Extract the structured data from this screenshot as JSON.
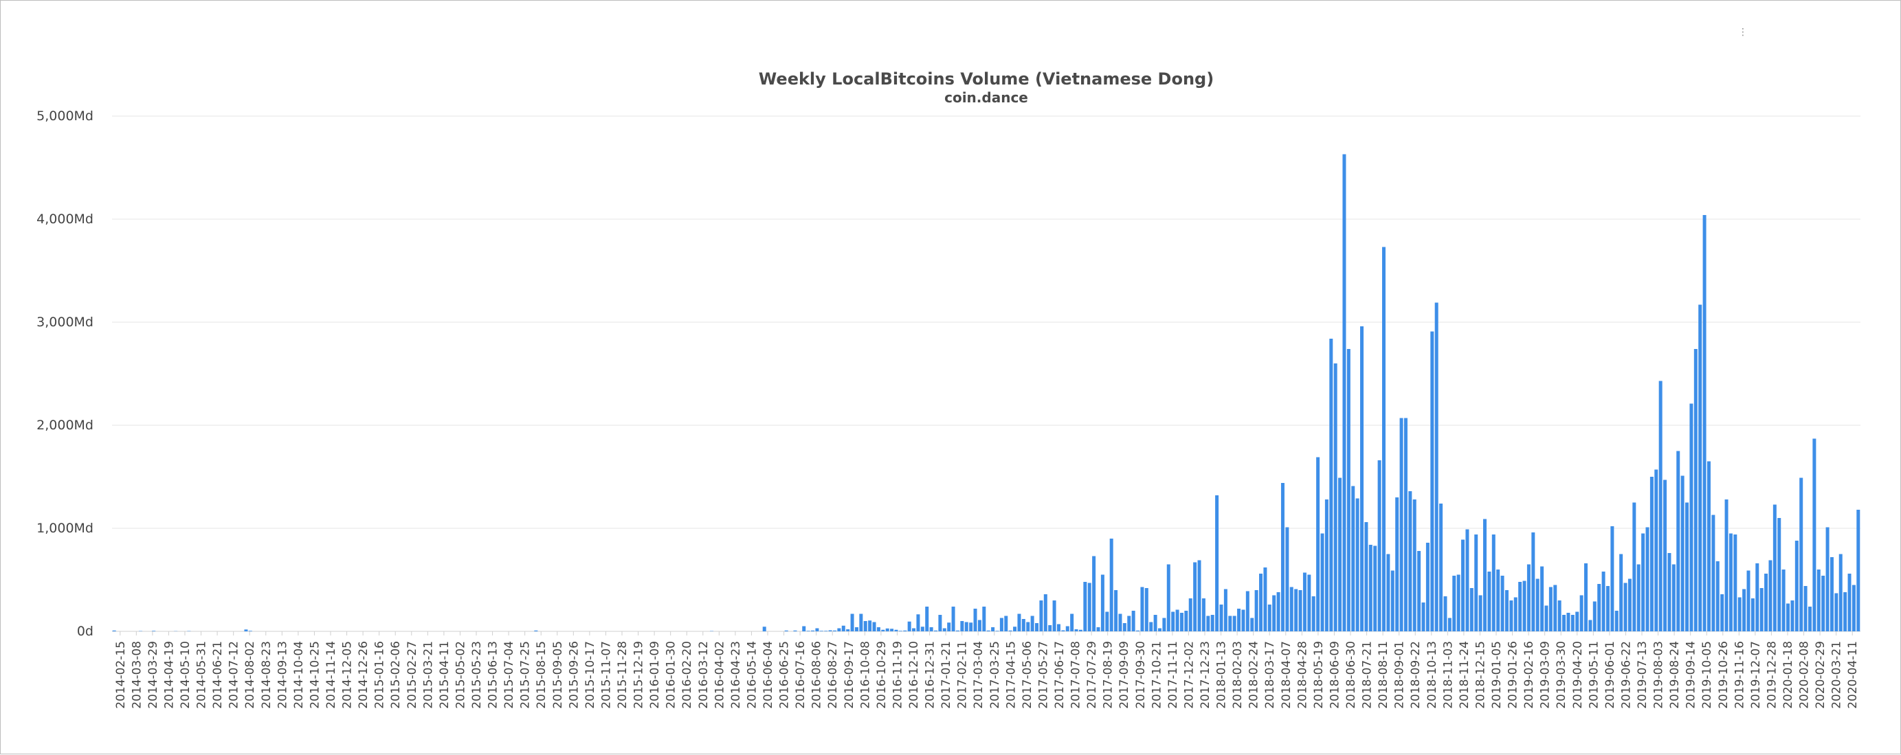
{
  "chart_data": {
    "type": "bar",
    "title": "Weekly LocalBitcoins Volume (Vietnamese Dong)",
    "subtitle": "coin.dance",
    "xlabel": "",
    "ylabel": "",
    "ylim": [
      0,
      5000
    ],
    "y_ticks": [
      0,
      1000,
      2000,
      3000,
      4000,
      5000
    ],
    "y_tick_labels": [
      "0d",
      "1,000Md",
      "2,000Md",
      "3,000Md",
      "4,000Md",
      "5,000Md"
    ],
    "grid": true,
    "color": "#3d8ee8",
    "x_labels": [
      "2014-02-15",
      "2014-03-08",
      "2014-03-29",
      "2014-04-19",
      "2014-05-10",
      "2014-05-31",
      "2014-06-21",
      "2014-07-12",
      "2014-08-02",
      "2014-08-23",
      "2014-09-13",
      "2014-10-04",
      "2014-10-25",
      "2014-11-14",
      "2014-12-05",
      "2014-12-26",
      "2015-01-16",
      "2015-02-06",
      "2015-02-27",
      "2015-03-21",
      "2015-04-11",
      "2015-05-02",
      "2015-05-23",
      "2015-06-13",
      "2015-07-04",
      "2015-07-25",
      "2015-08-15",
      "2015-09-05",
      "2015-09-26",
      "2015-10-17",
      "2015-11-07",
      "2015-11-28",
      "2015-12-19",
      "2016-01-09",
      "2016-01-30",
      "2016-02-20",
      "2016-03-12",
      "2016-04-02",
      "2016-04-23",
      "2016-05-14",
      "2016-06-04",
      "2016-06-25",
      "2016-07-16",
      "2016-08-06",
      "2016-08-27",
      "2016-09-17",
      "2016-10-08",
      "2016-10-29",
      "2016-11-19",
      "2016-12-10",
      "2016-12-31",
      "2017-01-21",
      "2017-02-11",
      "2017-03-04",
      "2017-03-25",
      "2017-04-15",
      "2017-05-06",
      "2017-05-27",
      "2017-06-17",
      "2017-07-08",
      "2017-07-29",
      "2017-08-19",
      "2017-09-09",
      "2017-09-30",
      "2017-10-21",
      "2017-11-11",
      "2017-12-02",
      "2017-12-23",
      "2018-01-13",
      "2018-02-03",
      "2018-02-24",
      "2018-03-17",
      "2018-04-07",
      "2018-04-28",
      "2018-05-19",
      "2018-06-09",
      "2018-06-30",
      "2018-07-21",
      "2018-08-11",
      "2018-09-01",
      "2018-09-22",
      "2018-10-13",
      "2018-11-03",
      "2018-11-24",
      "2018-12-15",
      "2019-01-05",
      "2019-01-26",
      "2019-02-16",
      "2019-03-09",
      "2019-03-30",
      "2019-04-20",
      "2019-05-11",
      "2019-06-01",
      "2019-06-22",
      "2019-07-13",
      "2019-08-03",
      "2019-08-24",
      "2019-09-14",
      "2019-10-05",
      "2019-10-26",
      "2019-11-16",
      "2019-12-07",
      "2019-12-28",
      "2020-01-18",
      "2020-02-08",
      "2020-02-29",
      "2020-03-21",
      "2020-04-11"
    ],
    "values": [
      8,
      0,
      0,
      0,
      0,
      0,
      3,
      0,
      0,
      5,
      0,
      0,
      0,
      0,
      2,
      0,
      0,
      3,
      0,
      0,
      0,
      0,
      0,
      0,
      0,
      0,
      0,
      0,
      0,
      0,
      18,
      5,
      0,
      0,
      0,
      0,
      0,
      0,
      0,
      0,
      0,
      0,
      0,
      0,
      0,
      0,
      0,
      0,
      0,
      0,
      0,
      0,
      0,
      0,
      0,
      0,
      0,
      0,
      0,
      0,
      0,
      0,
      0,
      0,
      0,
      0,
      0,
      0,
      0,
      0,
      0,
      0,
      0,
      0,
      0,
      0,
      0,
      0,
      0,
      0,
      0,
      0,
      0,
      0,
      0,
      0,
      0,
      0,
      0,
      0,
      0,
      0,
      0,
      0,
      0,
      0,
      8,
      0,
      0,
      0,
      0,
      0,
      0,
      0,
      0,
      0,
      0,
      0,
      0,
      0,
      0,
      0,
      0,
      0,
      0,
      0,
      0,
      0,
      0,
      0,
      0,
      0,
      0,
      0,
      0,
      0,
      0,
      0,
      0,
      0,
      0,
      0,
      0,
      0,
      0,
      0,
      3,
      0,
      0,
      0,
      0,
      0,
      0,
      0,
      0,
      0,
      0,
      0,
      45,
      0,
      0,
      0,
      0,
      8,
      0,
      8,
      0,
      50,
      5,
      8,
      30,
      5,
      5,
      10,
      8,
      30,
      55,
      20,
      170,
      40,
      170,
      100,
      105,
      90,
      40,
      15,
      28,
      25,
      15,
      5,
      8,
      95,
      30,
      165,
      45,
      240,
      40,
      8,
      160,
      30,
      85,
      240,
      8,
      100,
      90,
      85,
      220,
      110,
      240,
      8,
      40,
      5,
      130,
      150,
      8,
      45,
      170,
      120,
      90,
      150,
      80,
      300,
      360,
      60,
      300,
      70,
      10,
      50,
      170,
      20,
      15,
      480,
      470,
      730,
      40,
      550,
      190,
      900,
      400,
      170,
      80,
      150,
      200,
      8,
      430,
      420,
      90,
      160,
      30,
      130,
      650,
      190,
      210,
      180,
      200,
      320,
      670,
      690,
      320,
      150,
      160,
      1320,
      260,
      410,
      150,
      150,
      220,
      210,
      390,
      130,
      400,
      560,
      620,
      260,
      350,
      380,
      1440,
      1010,
      430,
      410,
      400,
      570,
      550,
      340,
      1690,
      950,
      1280,
      2840,
      2600,
      1490,
      4630,
      2740,
      1410,
      1290,
      2960,
      1060,
      840,
      830,
      1660,
      3730,
      750,
      590,
      1300,
      2070,
      2070,
      1360,
      1280,
      780,
      280,
      860,
      2910,
      3190,
      1240,
      340,
      130,
      540,
      550,
      890,
      990,
      420,
      940,
      350,
      1090,
      580,
      940,
      600,
      540,
      400,
      300,
      330,
      480,
      490,
      650,
      960,
      510,
      630,
      250,
      430,
      450,
      300,
      160,
      180,
      160,
      190,
      350,
      660,
      110,
      290,
      460,
      580,
      440,
      1020,
      200,
      750,
      470,
      510,
      1250,
      650,
      950,
      1010,
      1500,
      1570,
      2430,
      1470,
      760,
      650,
      1750,
      1510,
      1250,
      2210,
      2740,
      3170,
      4040,
      1650,
      1130,
      680,
      360,
      1280,
      950,
      940,
      330,
      410,
      590,
      320,
      660,
      420,
      560,
      690,
      1230,
      1100,
      600,
      270,
      300,
      880,
      1490,
      440,
      240,
      1870,
      600,
      540,
      1010,
      720,
      370,
      750,
      380,
      560,
      450,
      1180
    ]
  }
}
